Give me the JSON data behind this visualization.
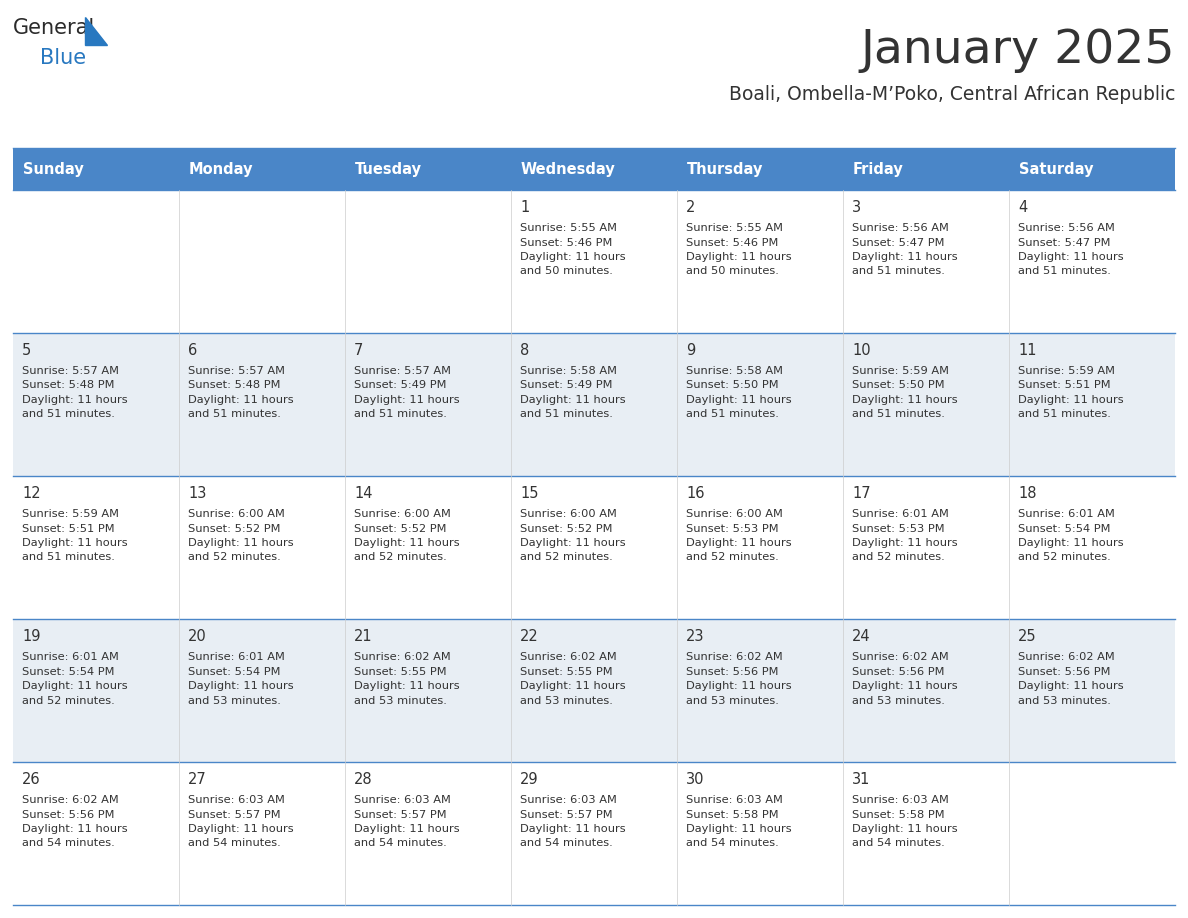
{
  "title": "January 2025",
  "subtitle": "Boali, Ombella-M’Poko, Central African Republic",
  "days_of_week": [
    "Sunday",
    "Monday",
    "Tuesday",
    "Wednesday",
    "Thursday",
    "Friday",
    "Saturday"
  ],
  "header_bg": "#4A86C8",
  "header_text": "#FFFFFF",
  "row_bg_light": "#FFFFFF",
  "row_bg_dark": "#E8EEF4",
  "cell_border_color": "#4A86C8",
  "day_number_color": "#333333",
  "info_text_color": "#333333",
  "title_color": "#333333",
  "subtitle_color": "#333333",
  "calendar_data": [
    {
      "day": 1,
      "col": 3,
      "row": 0,
      "sunrise": "5:55 AM",
      "sunset": "5:46 PM",
      "dl_hours": 11,
      "dl_mins": 50
    },
    {
      "day": 2,
      "col": 4,
      "row": 0,
      "sunrise": "5:55 AM",
      "sunset": "5:46 PM",
      "dl_hours": 11,
      "dl_mins": 50
    },
    {
      "day": 3,
      "col": 5,
      "row": 0,
      "sunrise": "5:56 AM",
      "sunset": "5:47 PM",
      "dl_hours": 11,
      "dl_mins": 51
    },
    {
      "day": 4,
      "col": 6,
      "row": 0,
      "sunrise": "5:56 AM",
      "sunset": "5:47 PM",
      "dl_hours": 11,
      "dl_mins": 51
    },
    {
      "day": 5,
      "col": 0,
      "row": 1,
      "sunrise": "5:57 AM",
      "sunset": "5:48 PM",
      "dl_hours": 11,
      "dl_mins": 51
    },
    {
      "day": 6,
      "col": 1,
      "row": 1,
      "sunrise": "5:57 AM",
      "sunset": "5:48 PM",
      "dl_hours": 11,
      "dl_mins": 51
    },
    {
      "day": 7,
      "col": 2,
      "row": 1,
      "sunrise": "5:57 AM",
      "sunset": "5:49 PM",
      "dl_hours": 11,
      "dl_mins": 51
    },
    {
      "day": 8,
      "col": 3,
      "row": 1,
      "sunrise": "5:58 AM",
      "sunset": "5:49 PM",
      "dl_hours": 11,
      "dl_mins": 51
    },
    {
      "day": 9,
      "col": 4,
      "row": 1,
      "sunrise": "5:58 AM",
      "sunset": "5:50 PM",
      "dl_hours": 11,
      "dl_mins": 51
    },
    {
      "day": 10,
      "col": 5,
      "row": 1,
      "sunrise": "5:59 AM",
      "sunset": "5:50 PM",
      "dl_hours": 11,
      "dl_mins": 51
    },
    {
      "day": 11,
      "col": 6,
      "row": 1,
      "sunrise": "5:59 AM",
      "sunset": "5:51 PM",
      "dl_hours": 11,
      "dl_mins": 51
    },
    {
      "day": 12,
      "col": 0,
      "row": 2,
      "sunrise": "5:59 AM",
      "sunset": "5:51 PM",
      "dl_hours": 11,
      "dl_mins": 51
    },
    {
      "day": 13,
      "col": 1,
      "row": 2,
      "sunrise": "6:00 AM",
      "sunset": "5:52 PM",
      "dl_hours": 11,
      "dl_mins": 52
    },
    {
      "day": 14,
      "col": 2,
      "row": 2,
      "sunrise": "6:00 AM",
      "sunset": "5:52 PM",
      "dl_hours": 11,
      "dl_mins": 52
    },
    {
      "day": 15,
      "col": 3,
      "row": 2,
      "sunrise": "6:00 AM",
      "sunset": "5:52 PM",
      "dl_hours": 11,
      "dl_mins": 52
    },
    {
      "day": 16,
      "col": 4,
      "row": 2,
      "sunrise": "6:00 AM",
      "sunset": "5:53 PM",
      "dl_hours": 11,
      "dl_mins": 52
    },
    {
      "day": 17,
      "col": 5,
      "row": 2,
      "sunrise": "6:01 AM",
      "sunset": "5:53 PM",
      "dl_hours": 11,
      "dl_mins": 52
    },
    {
      "day": 18,
      "col": 6,
      "row": 2,
      "sunrise": "6:01 AM",
      "sunset": "5:54 PM",
      "dl_hours": 11,
      "dl_mins": 52
    },
    {
      "day": 19,
      "col": 0,
      "row": 3,
      "sunrise": "6:01 AM",
      "sunset": "5:54 PM",
      "dl_hours": 11,
      "dl_mins": 52
    },
    {
      "day": 20,
      "col": 1,
      "row": 3,
      "sunrise": "6:01 AM",
      "sunset": "5:54 PM",
      "dl_hours": 11,
      "dl_mins": 53
    },
    {
      "day": 21,
      "col": 2,
      "row": 3,
      "sunrise": "6:02 AM",
      "sunset": "5:55 PM",
      "dl_hours": 11,
      "dl_mins": 53
    },
    {
      "day": 22,
      "col": 3,
      "row": 3,
      "sunrise": "6:02 AM",
      "sunset": "5:55 PM",
      "dl_hours": 11,
      "dl_mins": 53
    },
    {
      "day": 23,
      "col": 4,
      "row": 3,
      "sunrise": "6:02 AM",
      "sunset": "5:56 PM",
      "dl_hours": 11,
      "dl_mins": 53
    },
    {
      "day": 24,
      "col": 5,
      "row": 3,
      "sunrise": "6:02 AM",
      "sunset": "5:56 PM",
      "dl_hours": 11,
      "dl_mins": 53
    },
    {
      "day": 25,
      "col": 6,
      "row": 3,
      "sunrise": "6:02 AM",
      "sunset": "5:56 PM",
      "dl_hours": 11,
      "dl_mins": 53
    },
    {
      "day": 26,
      "col": 0,
      "row": 4,
      "sunrise": "6:02 AM",
      "sunset": "5:56 PM",
      "dl_hours": 11,
      "dl_mins": 54
    },
    {
      "day": 27,
      "col": 1,
      "row": 4,
      "sunrise": "6:03 AM",
      "sunset": "5:57 PM",
      "dl_hours": 11,
      "dl_mins": 54
    },
    {
      "day": 28,
      "col": 2,
      "row": 4,
      "sunrise": "6:03 AM",
      "sunset": "5:57 PM",
      "dl_hours": 11,
      "dl_mins": 54
    },
    {
      "day": 29,
      "col": 3,
      "row": 4,
      "sunrise": "6:03 AM",
      "sunset": "5:57 PM",
      "dl_hours": 11,
      "dl_mins": 54
    },
    {
      "day": 30,
      "col": 4,
      "row": 4,
      "sunrise": "6:03 AM",
      "sunset": "5:58 PM",
      "dl_hours": 11,
      "dl_mins": 54
    },
    {
      "day": 31,
      "col": 5,
      "row": 4,
      "sunrise": "6:03 AM",
      "sunset": "5:58 PM",
      "dl_hours": 11,
      "dl_mins": 54
    }
  ],
  "num_rows": 5,
  "num_cols": 7,
  "logo_general_color": "#2B2B2B",
  "logo_blue_color": "#2878C0"
}
